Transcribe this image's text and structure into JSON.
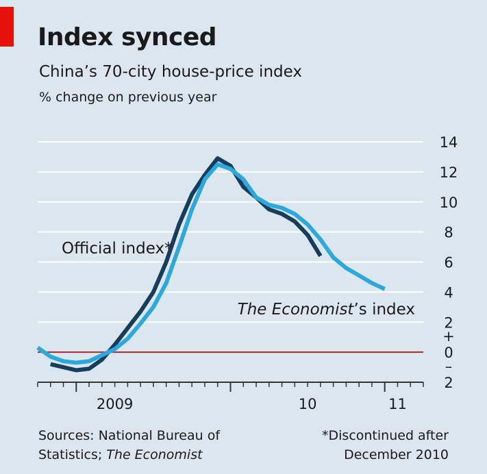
{
  "header": {
    "title": "Index synced",
    "subtitle": "China’s 70-city house-price index",
    "unit": "% change on previous year"
  },
  "colors": {
    "background": "#dbe6ee",
    "accent": "#e3120b",
    "official": "#163e5c",
    "economist": "#2ba9dc",
    "gridline": "#ffffff",
    "zeroline": "#b1262b"
  },
  "chart_data": {
    "type": "line",
    "ylim": [
      -2,
      14
    ],
    "yticks": [
      14,
      12,
      10,
      8,
      6,
      4,
      2,
      0,
      -2
    ],
    "ytick_labels": [
      "14",
      "12",
      "10",
      "8",
      "6",
      "4",
      "2",
      "0",
      "2"
    ],
    "sign_labels": {
      "plus": "+",
      "minus": "–"
    },
    "xlim": [
      "2008-10",
      "2011-04"
    ],
    "xticks": [
      {
        "label": "2009",
        "date": "2009-04"
      },
      {
        "label": "10",
        "date": "2010-07"
      },
      {
        "label": "11",
        "date": "2011-02"
      }
    ],
    "grid": true,
    "legend": "inline labels",
    "series": [
      {
        "name": "Official index*",
        "points": [
          {
            "x": "2008-11",
            "y": -0.8
          },
          {
            "x": "2009-01",
            "y": -1.2
          },
          {
            "x": "2009-02",
            "y": -1.1
          },
          {
            "x": "2009-03",
            "y": -0.5
          },
          {
            "x": "2009-04",
            "y": 0.5
          },
          {
            "x": "2009-05",
            "y": 1.6
          },
          {
            "x": "2009-06",
            "y": 2.7
          },
          {
            "x": "2009-07",
            "y": 4.0
          },
          {
            "x": "2009-08",
            "y": 6.0
          },
          {
            "x": "2009-09",
            "y": 8.5
          },
          {
            "x": "2009-10",
            "y": 10.5
          },
          {
            "x": "2009-11",
            "y": 11.8
          },
          {
            "x": "2009-12",
            "y": 12.9
          },
          {
            "x": "2010-01",
            "y": 12.4
          },
          {
            "x": "2010-02",
            "y": 11.0
          },
          {
            "x": "2010-03",
            "y": 10.3
          },
          {
            "x": "2010-04",
            "y": 9.5
          },
          {
            "x": "2010-05",
            "y": 9.2
          },
          {
            "x": "2010-06",
            "y": 8.7
          },
          {
            "x": "2010-07",
            "y": 7.8
          },
          {
            "x": "2010-08",
            "y": 6.4
          }
        ]
      },
      {
        "name": "The Economist’s index",
        "points": [
          {
            "x": "2008-10",
            "y": 0.3
          },
          {
            "x": "2008-11",
            "y": -0.3
          },
          {
            "x": "2008-12",
            "y": -0.6
          },
          {
            "x": "2009-01",
            "y": -0.7
          },
          {
            "x": "2009-02",
            "y": -0.6
          },
          {
            "x": "2009-03",
            "y": -0.2
          },
          {
            "x": "2009-04",
            "y": 0.2
          },
          {
            "x": "2009-05",
            "y": 0.9
          },
          {
            "x": "2009-06",
            "y": 1.9
          },
          {
            "x": "2009-07",
            "y": 3.0
          },
          {
            "x": "2009-08",
            "y": 4.6
          },
          {
            "x": "2009-09",
            "y": 7.0
          },
          {
            "x": "2009-10",
            "y": 9.5
          },
          {
            "x": "2009-11",
            "y": 11.5
          },
          {
            "x": "2009-12",
            "y": 12.5
          },
          {
            "x": "2010-01",
            "y": 12.2
          },
          {
            "x": "2010-02",
            "y": 11.5
          },
          {
            "x": "2010-03",
            "y": 10.3
          },
          {
            "x": "2010-04",
            "y": 9.8
          },
          {
            "x": "2010-05",
            "y": 9.6
          },
          {
            "x": "2010-06",
            "y": 9.2
          },
          {
            "x": "2010-07",
            "y": 8.5
          },
          {
            "x": "2010-08",
            "y": 7.5
          },
          {
            "x": "2010-09",
            "y": 6.3
          },
          {
            "x": "2010-10",
            "y": 5.6
          },
          {
            "x": "2010-11",
            "y": 5.1
          },
          {
            "x": "2010-12",
            "y": 4.6
          },
          {
            "x": "2011-01",
            "y": 4.2
          }
        ]
      }
    ],
    "annotations": [
      {
        "series": 0,
        "text": "Official index*"
      },
      {
        "series": 1,
        "text_italic": "The Economist",
        "text_rest": "’s index"
      }
    ]
  },
  "footer": {
    "source_line1": "Sources: National Bureau of",
    "source_line2_prefix": "Statistics; ",
    "source_line2_italic": "The Economist",
    "note_line1": "*Discontinued after",
    "note_line2": "December 2010"
  }
}
